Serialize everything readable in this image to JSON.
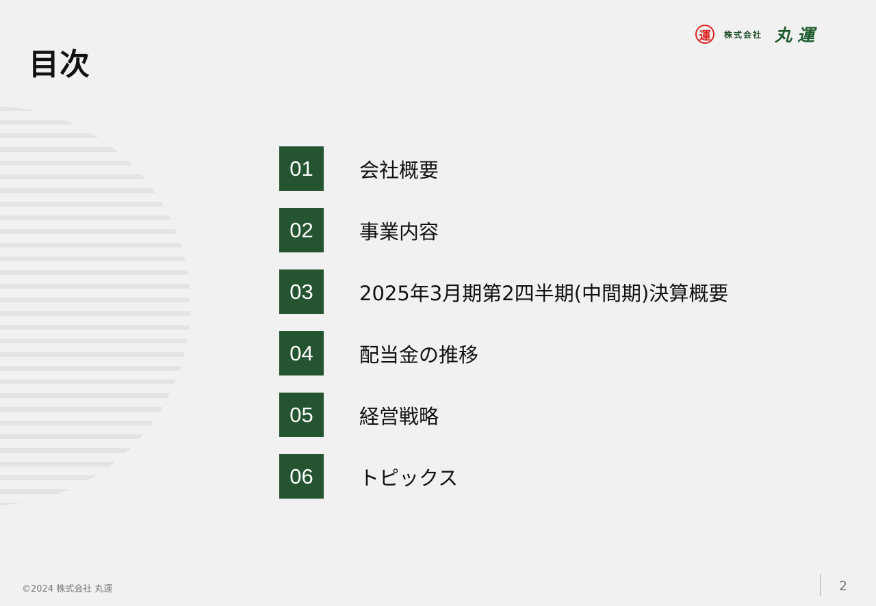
{
  "title": "目次",
  "logo": {
    "seal": "運",
    "company_type": "株式会社",
    "name": "丸運"
  },
  "toc": [
    {
      "number": "01",
      "label": "会社概要"
    },
    {
      "number": "02",
      "label": "事業内容"
    },
    {
      "number": "03",
      "label": "2025年3月期第2四半期(中間期)決算概要"
    },
    {
      "number": "04",
      "label": "配当金の推移"
    },
    {
      "number": "05",
      "label": "経営戦略"
    },
    {
      "number": "06",
      "label": "トピックス"
    }
  ],
  "footer": {
    "copyright": "©2024  株式会社 丸運",
    "page": "2"
  },
  "colors": {
    "accent": "#245430",
    "background": "#f1f1f1",
    "seal": "#dd2222"
  }
}
